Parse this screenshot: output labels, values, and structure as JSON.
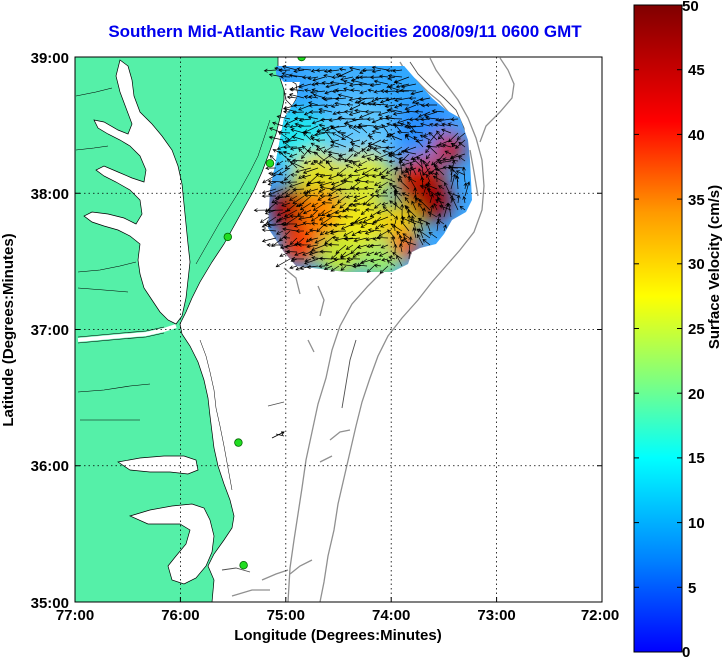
{
  "title": "Southern Mid-Atlantic Raw Velocities 2008/09/11 0600 GMT",
  "x_axis": {
    "label": "Longitude (Degrees:Minutes)",
    "ticks": [
      "77:00",
      "76:00",
      "75:00",
      "74:00",
      "73:00",
      "72:00"
    ]
  },
  "y_axis": {
    "label": "Latitude (Degrees:Minutes)",
    "ticks": [
      "39:00",
      "38:00",
      "37:00",
      "36:00",
      "35:00"
    ]
  },
  "colorbar": {
    "label": "Surface Velocity (cm/s)",
    "ticks": [
      "50",
      "45",
      "40",
      "35",
      "30",
      "25",
      "20",
      "15",
      "10",
      "5",
      "0"
    ],
    "min": 0,
    "max": 50,
    "colors": [
      "#0000ff",
      "#00bfff",
      "#00ffff",
      "#7fff7f",
      "#ffff00",
      "#ff7f00",
      "#ff0000",
      "#7f0000"
    ]
  },
  "colors": {
    "land": "#55f0a8",
    "ocean": "#ffffff",
    "title": "#0000ee",
    "arrow": "#000000",
    "contour": "#808080",
    "station": "#22dd22"
  },
  "chart_data": {
    "type": "heatmap",
    "title": "Southern Mid-Atlantic Raw Velocities 2008/09/11 0600 GMT",
    "xlabel": "Longitude (Degrees:Minutes)",
    "ylabel": "Latitude (Degrees:Minutes)",
    "xlim": [
      -77,
      -72
    ],
    "ylim": [
      35,
      39
    ],
    "grid": true,
    "colorbar_label": "Surface Velocity (cm/s)",
    "clim": [
      0,
      50
    ],
    "stations": [
      {
        "lon": -74.85,
        "lat": 39.0
      },
      {
        "lon": -75.15,
        "lat": 38.22
      },
      {
        "lon": -75.55,
        "lat": 37.68
      },
      {
        "lon": -75.45,
        "lat": 36.17
      },
      {
        "lon": -75.4,
        "lat": 35.27
      }
    ],
    "fields": [
      {
        "lon": -74.55,
        "lat": 38.75,
        "speed": 8
      },
      {
        "lon": -74.3,
        "lat": 38.7,
        "speed": 10
      },
      {
        "lon": -74.0,
        "lat": 38.7,
        "speed": 9
      },
      {
        "lon": -74.8,
        "lat": 38.45,
        "speed": 10
      },
      {
        "lon": -74.3,
        "lat": 38.4,
        "speed": 12
      },
      {
        "lon": -73.75,
        "lat": 38.45,
        "speed": 8
      },
      {
        "lon": -73.5,
        "lat": 38.25,
        "speed": 40
      },
      {
        "lon": -74.7,
        "lat": 38.1,
        "speed": 26
      },
      {
        "lon": -74.3,
        "lat": 38.05,
        "speed": 24
      },
      {
        "lon": -75.0,
        "lat": 37.8,
        "speed": 45
      },
      {
        "lon": -74.7,
        "lat": 37.8,
        "speed": 30
      },
      {
        "lon": -74.3,
        "lat": 37.7,
        "speed": 22
      },
      {
        "lon": -73.8,
        "lat": 37.85,
        "speed": 46
      },
      {
        "lon": -74.05,
        "lat": 37.55,
        "speed": 38
      },
      {
        "lon": -74.6,
        "lat": 37.5,
        "speed": 20
      }
    ]
  }
}
